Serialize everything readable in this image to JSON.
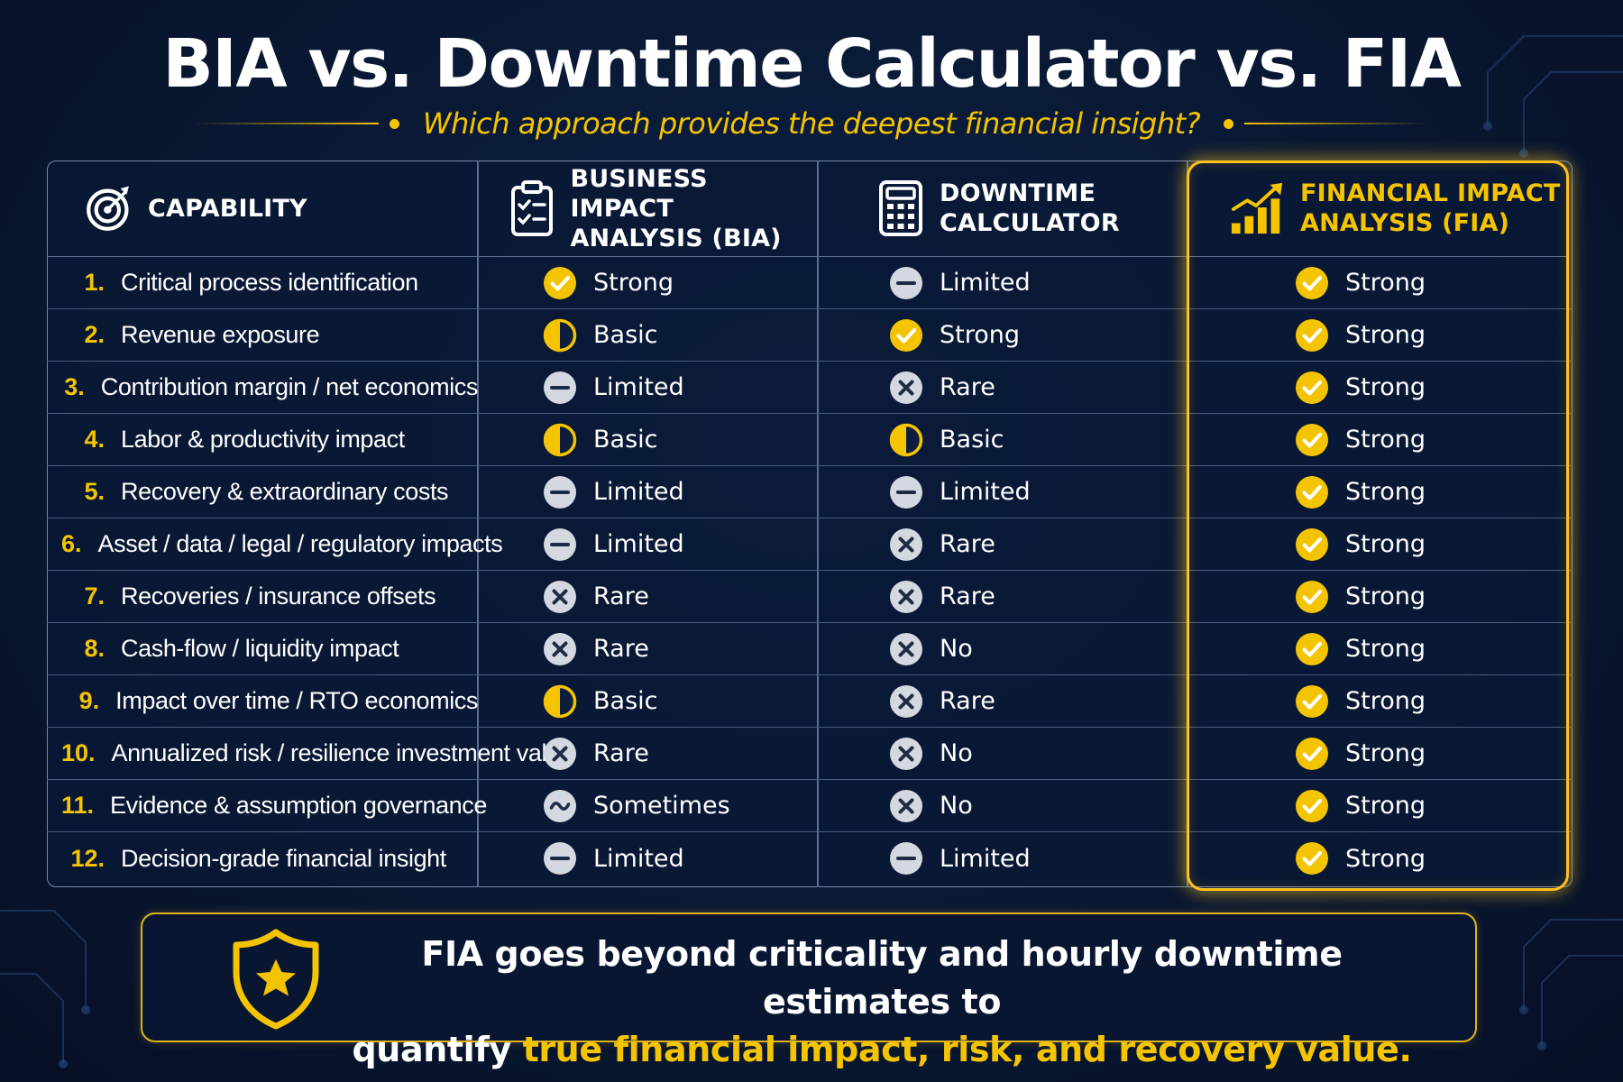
{
  "title": "BIA vs. Downtime Calculator vs. FIA",
  "subtitle": "Which approach provides the deepest financial insight?",
  "colors": {
    "background": "#0a1a36",
    "accent_gold": "#f5c400",
    "neutral_icon": "#d4d8e0",
    "text": "#ffffff"
  },
  "columns": {
    "capability": {
      "label": "CAPABILITY",
      "icon": "target-icon"
    },
    "bia": {
      "label_line1": "BUSINESS IMPACT",
      "label_line2": "ANALYSIS (BIA)",
      "icon": "clipboard-checklist-icon"
    },
    "downtime": {
      "label_line1": "DOWNTIME",
      "label_line2": "CALCULATOR",
      "icon": "calculator-icon"
    },
    "fia": {
      "label_line1": "FINANCIAL IMPACT",
      "label_line2": "ANALYSIS (FIA)",
      "icon": "growth-chart-icon",
      "highlighted": true
    }
  },
  "rating_icons": {
    "Strong": "check-circle-icon",
    "Basic": "half-circle-icon",
    "Limited": "minus-circle-icon",
    "Rare": "x-circle-icon",
    "No": "x-circle-icon",
    "Sometimes": "tilde-circle-icon"
  },
  "rows": [
    {
      "num": "1.",
      "label": "Critical process identification",
      "bia": "Strong",
      "downtime": "Limited",
      "fia": "Strong"
    },
    {
      "num": "2.",
      "label": "Revenue exposure",
      "bia": "Basic",
      "downtime": "Strong",
      "fia": "Strong"
    },
    {
      "num": "3.",
      "label": "Contribution margin / net economics",
      "bia": "Limited",
      "downtime": "Rare",
      "fia": "Strong"
    },
    {
      "num": "4.",
      "label": "Labor & productivity impact",
      "bia": "Basic",
      "downtime": "Basic",
      "fia": "Strong"
    },
    {
      "num": "5.",
      "label": "Recovery & extraordinary costs",
      "bia": "Limited",
      "downtime": "Limited",
      "fia": "Strong"
    },
    {
      "num": "6.",
      "label": "Asset / data / legal / regulatory impacts",
      "bia": "Limited",
      "downtime": "Rare",
      "fia": "Strong"
    },
    {
      "num": "7.",
      "label": "Recoveries / insurance offsets",
      "bia": "Rare",
      "downtime": "Rare",
      "fia": "Strong"
    },
    {
      "num": "8.",
      "label": "Cash-flow / liquidity impact",
      "bia": "Rare",
      "downtime": "No",
      "fia": "Strong"
    },
    {
      "num": "9.",
      "label": "Impact over time / RTO economics",
      "bia": "Basic",
      "downtime": "Rare",
      "fia": "Strong"
    },
    {
      "num": "10.",
      "label": "Annualized risk / resilience investment value",
      "bia": "Rare",
      "downtime": "No",
      "fia": "Strong"
    },
    {
      "num": "11.",
      "label": "Evidence & assumption governance",
      "bia": "Sometimes",
      "downtime": "No",
      "fia": "Strong"
    },
    {
      "num": "12.",
      "label": "Decision-grade financial insight",
      "bia": "Limited",
      "downtime": "Limited",
      "fia": "Strong"
    }
  ],
  "banner": {
    "icon": "shield-star-icon",
    "line1": "FIA goes beyond criticality and hourly downtime estimates to",
    "line2_prefix": "quantify ",
    "line2_highlight": "true financial impact, risk, and recovery value."
  }
}
